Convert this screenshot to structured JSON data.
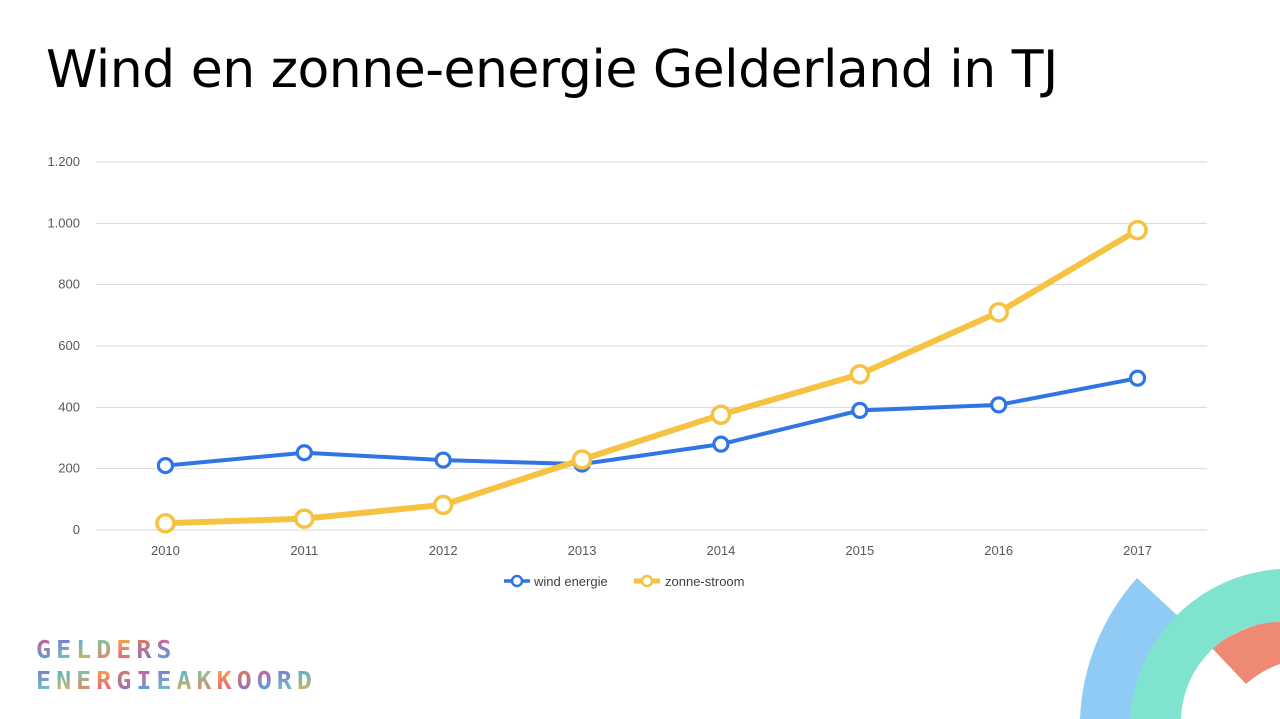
{
  "slide": {
    "title": "Wind en zonne-energie Gelderland in TJ"
  },
  "logo": {
    "line1": "GELDERS",
    "line2": "ENERGIEAKKOORD",
    "letter_colors": [
      "#e94f8a",
      "#7b6fd6",
      "#35b6e9",
      "#6fd3b6",
      "#f3b33d",
      "#f07a54"
    ]
  },
  "chart_data": {
    "type": "line",
    "title": "",
    "xlabel": "",
    "ylabel": "",
    "categories": [
      "2010",
      "2011",
      "2012",
      "2013",
      "2014",
      "2015",
      "2016",
      "2017"
    ],
    "ylim": [
      0,
      1200
    ],
    "yticks": [
      0,
      200,
      400,
      600,
      800,
      1000,
      1200
    ],
    "ytick_labels": [
      "0",
      "200",
      "400",
      "600",
      "800",
      "1.000",
      "1.200"
    ],
    "grid": true,
    "legend_position": "bottom",
    "series": [
      {
        "name": "wind energie",
        "color": "#2f75e6",
        "values": [
          210,
          252,
          228,
          215,
          280,
          390,
          408,
          495
        ]
      },
      {
        "name": "zonne-stroom",
        "color": "#f5c242",
        "values": [
          22,
          37,
          82,
          230,
          376,
          508,
          710,
          978
        ]
      }
    ]
  },
  "decor_colors": {
    "blue_arc": "#8fcbf4",
    "teal_arc": "#7fe3cf",
    "salmon_arc": "#ee8a73"
  }
}
